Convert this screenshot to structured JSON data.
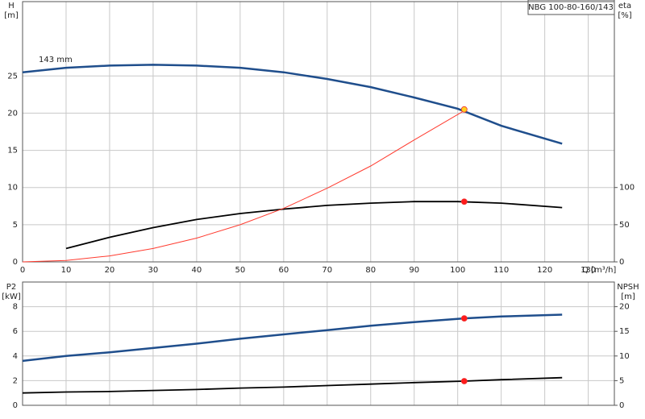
{
  "chart_data": [
    {
      "type": "line",
      "title": "NBG 100-80-160/143",
      "annotation": "143 mm",
      "ylabel": "H",
      "yunit": "[m]",
      "y2label": "eta",
      "y2unit": "[%]",
      "xlabel": "Q [m³/h]",
      "xlim": [
        0,
        136
      ],
      "xticks": [
        0,
        10,
        20,
        30,
        40,
        50,
        60,
        70,
        80,
        90,
        100,
        110,
        120,
        130
      ],
      "ylim": [
        0,
        35
      ],
      "yticks": [
        0,
        5,
        10,
        15,
        20,
        25
      ],
      "y2lim": [
        0,
        350
      ],
      "y2ticks": [
        0,
        50,
        100
      ],
      "grid": true,
      "series": [
        {
          "color": "#1f4e8c",
          "axis": "y",
          "x": [
            0,
            10,
            20,
            30,
            40,
            50,
            60,
            70,
            80,
            90,
            100,
            110,
            124
          ],
          "values": [
            25.5,
            26.1,
            26.4,
            26.5,
            26.4,
            26.1,
            25.5,
            24.6,
            23.5,
            22.1,
            20.6,
            18.3,
            15.9
          ]
        },
        {
          "color": "#000000",
          "axis": "y2",
          "x": [
            10,
            20,
            30,
            40,
            50,
            60,
            70,
            80,
            90,
            100,
            110,
            124
          ],
          "values": [
            18,
            33,
            46,
            57,
            65,
            71,
            76,
            79,
            81,
            81,
            79,
            73
          ]
        },
        {
          "color": "#ff3b2f",
          "axis": "y",
          "x": [
            0,
            10,
            20,
            30,
            40,
            50,
            60,
            70,
            80,
            90,
            102
          ],
          "values": [
            0,
            0.2,
            0.8,
            1.8,
            3.2,
            5.0,
            7.2,
            9.9,
            12.9,
            16.4,
            20.5
          ]
        }
      ],
      "points": [
        {
          "x": 101.5,
          "value": 20.5,
          "axis": "y",
          "color": "#ffd21f"
        },
        {
          "x": 101.5,
          "value": 81,
          "axis": "y2",
          "color": "#ff1a1a"
        }
      ]
    },
    {
      "type": "line",
      "ylabel": "P2",
      "yunit": "[kW]",
      "y2label": "NPSH",
      "y2unit": "[m]",
      "xlim": [
        0,
        136
      ],
      "ylim": [
        0,
        10
      ],
      "yticks": [
        0,
        2,
        4,
        6,
        8
      ],
      "y2lim": [
        0,
        25
      ],
      "y2ticks": [
        0,
        5,
        10,
        15,
        20
      ],
      "grid": true,
      "series": [
        {
          "color": "#1f4e8c",
          "axis": "y",
          "x": [
            0,
            10,
            20,
            30,
            40,
            50,
            60,
            70,
            80,
            90,
            101.5,
            110,
            124
          ],
          "values": [
            3.6,
            4.0,
            4.3,
            4.65,
            5.0,
            5.4,
            5.75,
            6.1,
            6.45,
            6.75,
            7.05,
            7.2,
            7.35
          ]
        },
        {
          "color": "#000000",
          "axis": "y2",
          "x": [
            0,
            10,
            20,
            30,
            40,
            50,
            60,
            70,
            80,
            90,
            101.5,
            110,
            124
          ],
          "values": [
            2.5,
            2.7,
            2.8,
            3.0,
            3.2,
            3.5,
            3.7,
            4.0,
            4.3,
            4.6,
            4.9,
            5.2,
            5.6
          ]
        }
      ],
      "points": [
        {
          "x": 101.5,
          "value": 7.05,
          "axis": "y",
          "color": "#ff1a1a"
        },
        {
          "x": 101.5,
          "value": 4.9,
          "axis": "y2",
          "color": "#ff1a1a"
        }
      ]
    }
  ]
}
